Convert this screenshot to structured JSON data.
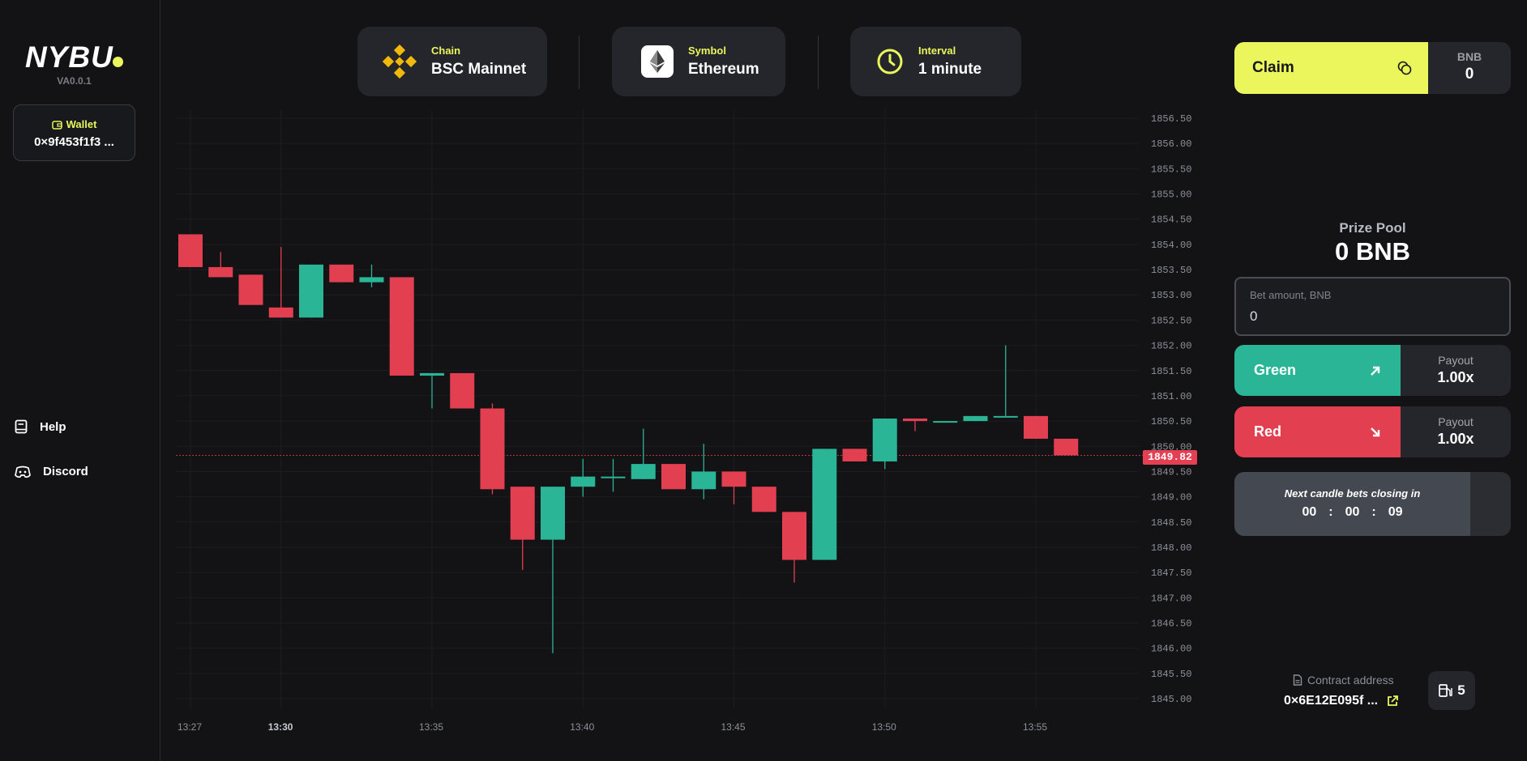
{
  "app": {
    "logo": "NYBU",
    "version": "VA0.0.1",
    "brand_color": "#eaf65b"
  },
  "sidebar": {
    "wallet_label": "Wallet",
    "wallet_address": "0×9f453f1f3 ...",
    "links": [
      {
        "label": "Help",
        "icon": "book-icon"
      },
      {
        "label": "Discord",
        "icon": "discord-icon"
      }
    ]
  },
  "selectors": {
    "chain": {
      "label": "Chain",
      "value": "BSC Mainnet",
      "icon": "binance-icon"
    },
    "symbol": {
      "label": "Symbol",
      "value": "Ethereum",
      "icon": "ethereum-icon"
    },
    "interval": {
      "label": "Interval",
      "value": "1 minute",
      "icon": "clock-icon"
    }
  },
  "right_panel": {
    "claim_label": "Claim",
    "bnb_label": "BNB",
    "bnb_value": "0",
    "prize_pool_label": "Prize Pool",
    "prize_pool_value": "0 BNB",
    "bet_label": "Bet amount, BNB",
    "bet_value": "0",
    "green_label": "Green",
    "red_label": "Red",
    "payout_label": "Payout",
    "green_payout": "1.00x",
    "red_payout": "1.00x",
    "countdown_title": "Next candle bets closing in",
    "countdown": {
      "h": "00",
      "m": "00",
      "s": "09",
      "sep": ":"
    },
    "contract_label": "Contract address",
    "contract_address": "0×6E12E095f ...",
    "gas_value": "5"
  },
  "chart_data": {
    "type": "candlestick",
    "current_price": 1849.82,
    "current_price_label": "1849.82",
    "ylim": [
      1845.0,
      1856.5
    ],
    "y_ticks": [
      "1856.50",
      "1856.00",
      "1855.50",
      "1855.00",
      "1854.50",
      "1854.00",
      "1853.50",
      "1853.00",
      "1852.50",
      "1852.00",
      "1851.50",
      "1851.00",
      "1850.50",
      "1850.00",
      "1849.50",
      "1849.00",
      "1848.50",
      "1848.00",
      "1847.50",
      "1847.00",
      "1846.50",
      "1846.00",
      "1845.50",
      "1845.00"
    ],
    "x_ticks": [
      {
        "label": "13:27",
        "minute": 27,
        "bold": false
      },
      {
        "label": "13:30",
        "minute": 30,
        "bold": true
      },
      {
        "label": "13:35",
        "minute": 35,
        "bold": false
      },
      {
        "label": "13:40",
        "minute": 40,
        "bold": false
      },
      {
        "label": "13:45",
        "minute": 45,
        "bold": false
      },
      {
        "label": "13:50",
        "minute": 50,
        "bold": false
      },
      {
        "label": "13:55",
        "minute": 55,
        "bold": false
      }
    ],
    "up_color": "#2ab596",
    "down_color": "#e23f50",
    "candles": [
      {
        "t": "13:27",
        "o": 1854.2,
        "h": 1854.2,
        "l": 1853.55,
        "c": 1853.55
      },
      {
        "t": "13:28",
        "o": 1853.55,
        "h": 1853.85,
        "l": 1853.35,
        "c": 1853.35
      },
      {
        "t": "13:29",
        "o": 1853.4,
        "h": 1853.4,
        "l": 1852.8,
        "c": 1852.8
      },
      {
        "t": "13:30",
        "o": 1852.75,
        "h": 1853.95,
        "l": 1852.55,
        "c": 1852.55
      },
      {
        "t": "13:31",
        "o": 1852.55,
        "h": 1853.6,
        "l": 1852.55,
        "c": 1853.6
      },
      {
        "t": "13:32",
        "o": 1853.6,
        "h": 1853.6,
        "l": 1853.25,
        "c": 1853.25
      },
      {
        "t": "13:33",
        "o": 1853.25,
        "h": 1853.6,
        "l": 1853.15,
        "c": 1853.35
      },
      {
        "t": "13:34",
        "o": 1853.35,
        "h": 1853.35,
        "l": 1851.4,
        "c": 1851.4
      },
      {
        "t": "13:35",
        "o": 1851.4,
        "h": 1851.45,
        "l": 1850.75,
        "c": 1851.45
      },
      {
        "t": "13:36",
        "o": 1851.45,
        "h": 1851.45,
        "l": 1850.75,
        "c": 1850.75
      },
      {
        "t": "13:37",
        "o": 1850.75,
        "h": 1850.85,
        "l": 1849.05,
        "c": 1849.15
      },
      {
        "t": "13:38",
        "o": 1849.2,
        "h": 1849.2,
        "l": 1847.55,
        "c": 1848.15
      },
      {
        "t": "13:39",
        "o": 1848.15,
        "h": 1849.2,
        "l": 1845.9,
        "c": 1849.2
      },
      {
        "t": "13:40",
        "o": 1849.2,
        "h": 1849.75,
        "l": 1849.0,
        "c": 1849.4
      },
      {
        "t": "13:41",
        "o": 1849.4,
        "h": 1849.75,
        "l": 1849.1,
        "c": 1849.4
      },
      {
        "t": "13:42",
        "o": 1849.35,
        "h": 1850.35,
        "l": 1849.35,
        "c": 1849.65
      },
      {
        "t": "13:43",
        "o": 1849.65,
        "h": 1849.65,
        "l": 1849.15,
        "c": 1849.15
      },
      {
        "t": "13:44",
        "o": 1849.15,
        "h": 1850.05,
        "l": 1848.95,
        "c": 1849.5
      },
      {
        "t": "13:45",
        "o": 1849.5,
        "h": 1849.5,
        "l": 1848.85,
        "c": 1849.2
      },
      {
        "t": "13:46",
        "o": 1849.2,
        "h": 1849.2,
        "l": 1848.7,
        "c": 1848.7
      },
      {
        "t": "13:47",
        "o": 1848.7,
        "h": 1848.7,
        "l": 1847.3,
        "c": 1847.75
      },
      {
        "t": "13:48",
        "o": 1847.75,
        "h": 1849.95,
        "l": 1847.75,
        "c": 1849.95
      },
      {
        "t": "13:49",
        "o": 1849.95,
        "h": 1849.95,
        "l": 1849.7,
        "c": 1849.7
      },
      {
        "t": "13:50",
        "o": 1849.7,
        "h": 1850.55,
        "l": 1849.55,
        "c": 1850.55
      },
      {
        "t": "13:51",
        "o": 1850.55,
        "h": 1850.55,
        "l": 1850.3,
        "c": 1850.5
      },
      {
        "t": "13:52",
        "o": 1850.5,
        "h": 1850.5,
        "l": 1850.5,
        "c": 1850.5
      },
      {
        "t": "13:53",
        "o": 1850.5,
        "h": 1850.6,
        "l": 1850.5,
        "c": 1850.6
      },
      {
        "t": "13:54",
        "o": 1850.6,
        "h": 1852.0,
        "l": 1850.6,
        "c": 1850.6
      },
      {
        "t": "13:55",
        "o": 1850.6,
        "h": 1850.6,
        "l": 1850.15,
        "c": 1850.15
      },
      {
        "t": "13:56",
        "o": 1850.15,
        "h": 1850.15,
        "l": 1849.82,
        "c": 1849.82
      }
    ]
  }
}
